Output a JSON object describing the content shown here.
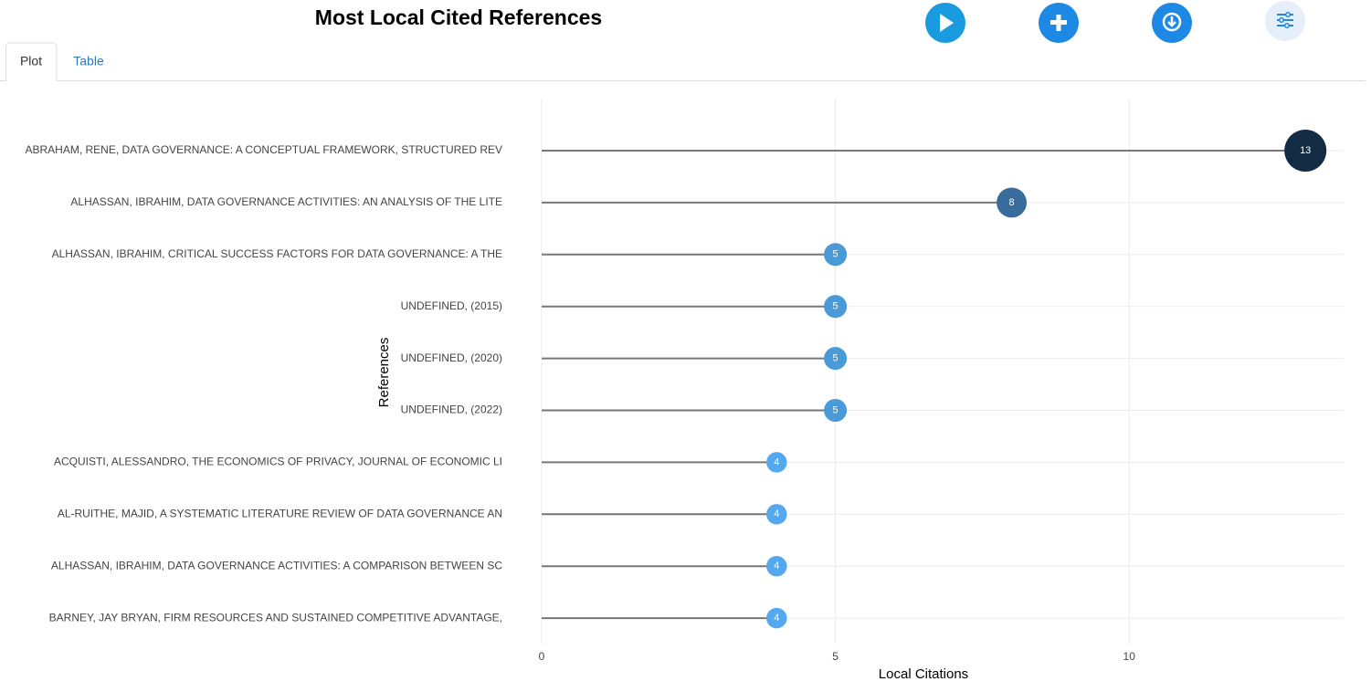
{
  "page": {
    "title": "Most Local Cited References",
    "tabs": [
      "Plot",
      "Table"
    ]
  },
  "chart_data": {
    "type": "lollipop",
    "categories": [
      "ABRAHAM, RENE, DATA GOVERNANCE: A CONCEPTUAL FRAMEWORK, STRUCTURED REV",
      "ALHASSAN, IBRAHIM, DATA GOVERNANCE ACTIVITIES: AN ANALYSIS OF THE LITE",
      "ALHASSAN, IBRAHIM, CRITICAL SUCCESS FACTORS FOR DATA GOVERNANCE: A THE",
      "UNDEFINED, (2015)",
      "UNDEFINED, (2020)",
      "UNDEFINED, (2022)",
      "ACQUISTI, ALESSANDRO, THE ECONOMICS OF PRIVACY, JOURNAL OF ECONOMIC LI",
      "AL-RUITHE, MAJID, A SYSTEMATIC LITERATURE REVIEW OF DATA GOVERNANCE AN",
      "ALHASSAN, IBRAHIM, DATA GOVERNANCE ACTIVITIES: A COMPARISON BETWEEN SC",
      "BARNEY, JAY BRYAN, FIRM RESOURCES AND SUSTAINED COMPETITIVE ADVANTAGE,"
    ],
    "values": [
      13,
      8,
      5,
      5,
      5,
      5,
      4,
      4,
      4,
      4
    ],
    "colors": [
      "#132b43",
      "#386c9a",
      "#4a9ad8",
      "#4a9ad8",
      "#4a9ad8",
      "#4a9ad8",
      "#56a8ee",
      "#56a8ee",
      "#56a8ee",
      "#56a8ee"
    ],
    "stem_color": "#777777",
    "xlim": [
      0,
      13.65
    ],
    "xticks": [
      0,
      5,
      10
    ],
    "x_label": "Local Citations",
    "y_label": "References",
    "grid": true
  }
}
